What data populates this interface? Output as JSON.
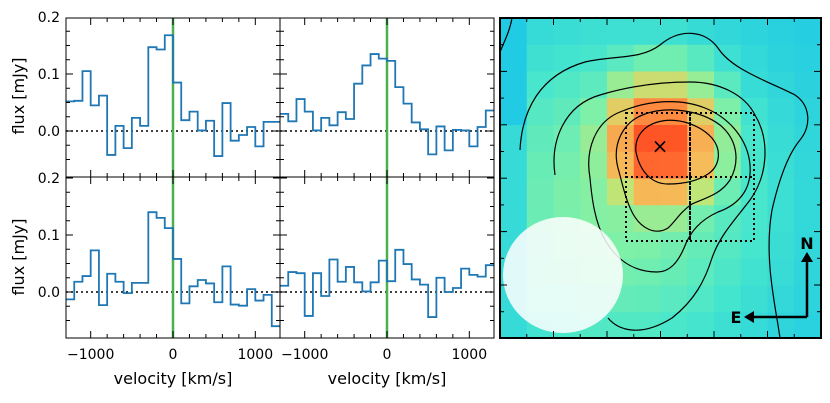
{
  "chart_data": [
    {
      "type": "line",
      "panel": "top-left",
      "xlim": [
        -1300,
        1300
      ],
      "ylim": [
        -0.07,
        0.22
      ],
      "ylabel": "flux [mJy]",
      "xlabel": "",
      "yticks": [
        0.2,
        0.1,
        0.0
      ],
      "ytick_labels": [
        "0.2",
        "0.1",
        "0.0"
      ],
      "xticks": [],
      "xtick_labels": [],
      "step_edges": [
        -1300,
        -1200,
        -1100,
        -1000,
        -900,
        -800,
        -700,
        -600,
        -500,
        -400,
        -300,
        -200,
        -100,
        0,
        100,
        200,
        300,
        400,
        500,
        600,
        700,
        800,
        900,
        1000,
        1100,
        1200,
        1300
      ],
      "values": [
        0.052,
        0.053,
        0.105,
        0.045,
        0.062,
        -0.042,
        0.009,
        -0.03,
        0.023,
        0.009,
        0.147,
        0.143,
        0.168,
        0.085,
        0.019,
        0.034,
        0.001,
        0.018,
        -0.044,
        0.049,
        -0.017,
        -0.007,
        0.007,
        -0.027,
        0.016,
        0.016
      ],
      "reference_line": {
        "x": 0,
        "color": "#4caf50"
      },
      "zero_line": {
        "y": 0,
        "style": "dotted"
      }
    },
    {
      "type": "line",
      "panel": "top-right",
      "xlim": [
        -1300,
        1300
      ],
      "ylim": [
        -0.07,
        0.22
      ],
      "ylabel": "",
      "xlabel": "",
      "yticks": [],
      "ytick_labels": [],
      "xticks": [],
      "xtick_labels": [],
      "step_edges": [
        -1300,
        -1200,
        -1100,
        -1000,
        -900,
        -800,
        -700,
        -600,
        -500,
        -400,
        -300,
        -200,
        -100,
        0,
        100,
        200,
        300,
        400,
        500,
        600,
        700,
        800,
        900,
        1000,
        1100,
        1200,
        1300
      ],
      "values": [
        0.03,
        0.017,
        0.056,
        0.034,
        0.001,
        0.023,
        0.01,
        0.033,
        0.021,
        0.083,
        0.115,
        0.135,
        0.127,
        0.123,
        0.077,
        0.048,
        0.015,
        0.003,
        -0.041,
        0.008,
        -0.034,
        0.002,
        0.001,
        -0.027,
        0.007,
        0.036
      ],
      "reference_line": {
        "x": 0,
        "color": "#4caf50"
      },
      "zero_line": {
        "y": 0,
        "style": "dotted"
      }
    },
    {
      "type": "line",
      "panel": "bottom-left",
      "xlim": [
        -1300,
        1300
      ],
      "ylim": [
        -0.07,
        0.22
      ],
      "ylabel": "flux [mJy]",
      "xlabel": "velocity [km/s]",
      "yticks": [
        0.2,
        0.1,
        0.0
      ],
      "ytick_labels": [
        "0.2",
        "0.1",
        "0.0"
      ],
      "xticks": [
        -1000,
        0,
        1000
      ],
      "xtick_labels": [
        "−1000",
        "0",
        "1000"
      ],
      "step_edges": [
        -1300,
        -1200,
        -1100,
        -1000,
        -900,
        -800,
        -700,
        -600,
        -500,
        -400,
        -300,
        -200,
        -100,
        0,
        100,
        200,
        300,
        400,
        500,
        600,
        700,
        800,
        900,
        1000,
        1100,
        1200,
        1300
      ],
      "values": [
        -0.013,
        0.018,
        0.028,
        0.073,
        -0.023,
        0.032,
        0.018,
        -0.002,
        0.016,
        0.016,
        0.14,
        0.13,
        0.112,
        0.058,
        -0.02,
        0.01,
        0.021,
        0.015,
        -0.018,
        0.045,
        -0.022,
        -0.024,
        0.005,
        -0.015,
        -0.005,
        -0.06
      ],
      "reference_line": {
        "x": 0,
        "color": "#4caf50"
      },
      "zero_line": {
        "y": 0,
        "style": "dotted"
      }
    },
    {
      "type": "line",
      "panel": "bottom-right",
      "xlim": [
        -1300,
        1300
      ],
      "ylim": [
        -0.07,
        0.22
      ],
      "ylabel": "",
      "xlabel": "velocity [km/s]",
      "yticks": [],
      "ytick_labels": [],
      "xticks": [
        -1000,
        0,
        1000
      ],
      "xtick_labels": [
        "−1000",
        "0",
        "1000"
      ],
      "step_edges": [
        -1300,
        -1200,
        -1100,
        -1000,
        -900,
        -800,
        -700,
        -600,
        -500,
        -400,
        -300,
        -200,
        -100,
        0,
        100,
        200,
        300,
        400,
        500,
        600,
        700,
        800,
        900,
        1000,
        1100,
        1200,
        1300
      ],
      "values": [
        0.011,
        0.035,
        0.033,
        -0.042,
        0.033,
        -0.007,
        0.057,
        0.018,
        0.044,
        0.017,
        0.001,
        0.017,
        0.055,
        0.019,
        0.074,
        0.049,
        0.022,
        0.013,
        -0.044,
        0.025,
        0.0,
        0.007,
        0.041,
        0.03,
        0.027,
        0.047
      ],
      "reference_line": {
        "x": 0,
        "color": "#4caf50"
      },
      "zero_line": {
        "y": 0,
        "style": "dotted"
      }
    },
    {
      "type": "heatmap",
      "panel": "map",
      "description_of_marks": [
        "intensity map",
        "contours",
        "peak marker",
        "aperture boxes",
        "beam ellipse",
        "compass"
      ],
      "peak_marker": "×",
      "compass": {
        "north": "N",
        "east": "E"
      },
      "colors": {
        "low": "#1ec8e6",
        "mid": "#7ff0a8",
        "high": "#ff4a20"
      }
    }
  ]
}
